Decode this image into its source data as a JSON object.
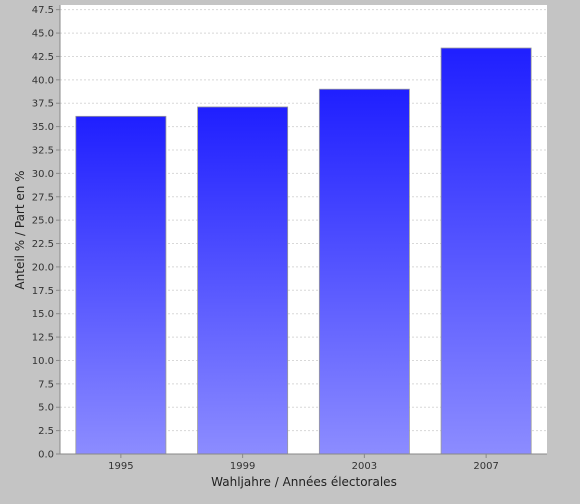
{
  "chart_data": {
    "type": "bar",
    "title": "",
    "xlabel": "Wahljahre / Années électorales",
    "ylabel": "Anteil % / Part en %",
    "categories": [
      "1995",
      "1999",
      "2003",
      "2007"
    ],
    "values": [
      36.1,
      37.1,
      39.0,
      43.4
    ],
    "ylim": [
      0,
      48
    ],
    "yticks": [
      "0.0",
      "2.5",
      "5.0",
      "7.5",
      "10.0",
      "12.5",
      "15.0",
      "17.5",
      "20.0",
      "22.5",
      "25.0",
      "27.5",
      "30.0",
      "32.5",
      "35.0",
      "37.5",
      "40.0",
      "42.5",
      "45.0",
      "47.5"
    ],
    "grid": true,
    "legend": "none",
    "colors": {
      "background": "#c4c4c4",
      "plot_background": "#ffffff",
      "bar_top": "#1f1fff",
      "bar_bottom": "#8c8cff",
      "gridline": "#d8d8d8",
      "axis": "#888888"
    }
  }
}
